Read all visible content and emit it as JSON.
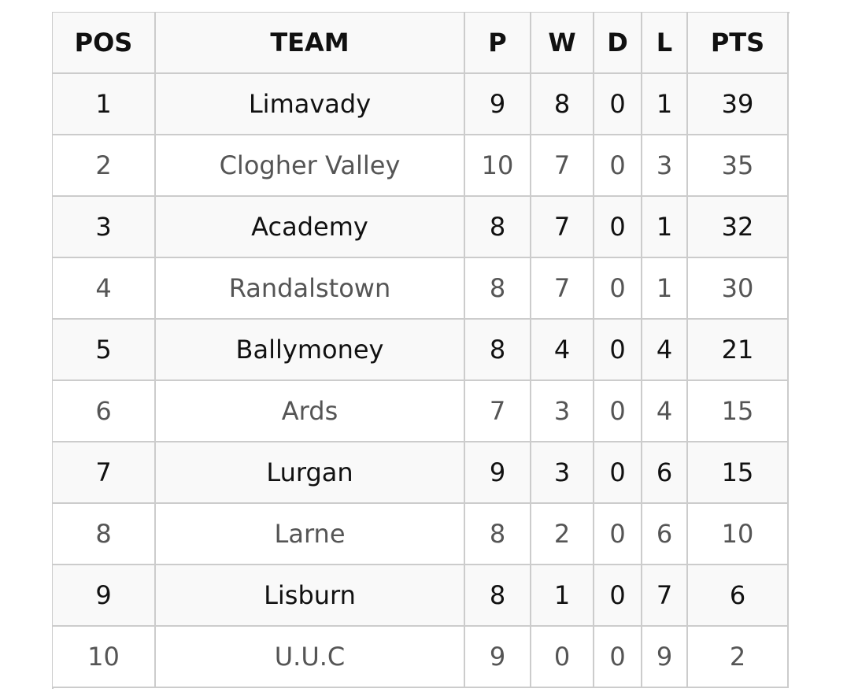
{
  "table": {
    "columns": [
      "POS",
      "TEAM",
      "P",
      "W",
      "D",
      "L",
      "PTS"
    ],
    "rows": [
      [
        1,
        "Limavady",
        9,
        8,
        0,
        1,
        39
      ],
      [
        2,
        "Clogher Valley",
        10,
        7,
        0,
        3,
        35
      ],
      [
        3,
        "Academy",
        8,
        7,
        0,
        1,
        32
      ],
      [
        4,
        "Randalstown",
        8,
        7,
        0,
        1,
        30
      ],
      [
        5,
        "Ballymoney",
        8,
        4,
        0,
        4,
        21
      ],
      [
        6,
        "Ards",
        7,
        3,
        0,
        4,
        15
      ],
      [
        7,
        "Lurgan",
        9,
        3,
        0,
        6,
        15
      ],
      [
        8,
        "Larne",
        8,
        2,
        0,
        6,
        10
      ],
      [
        9,
        "Lisburn",
        8,
        1,
        0,
        7,
        6
      ],
      [
        10,
        "U.U.C",
        9,
        0,
        0,
        9,
        2
      ]
    ]
  }
}
